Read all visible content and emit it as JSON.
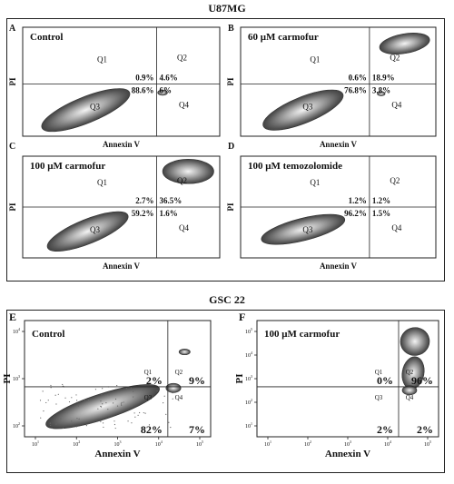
{
  "sections": [
    {
      "title": "U87MG"
    },
    {
      "title": "GSC 22"
    }
  ],
  "chart_data": [
    {
      "type": "scatter",
      "panel": "A",
      "title": "Control",
      "xlabel": "Annexin V",
      "ylabel": "PI",
      "size": "small",
      "quadrants": {
        "Q1": "0.9%",
        "Q2": "4.6%",
        "Q3": "88.6%",
        "Q4": "6%"
      },
      "populations": [
        {
          "quadrant": "Q3",
          "desc": "main"
        },
        {
          "quadrant": "Q4",
          "desc": "small-speck"
        }
      ]
    },
    {
      "type": "scatter",
      "panel": "B",
      "title": "60 μM carmofur",
      "xlabel": "Annexin V",
      "ylabel": "PI",
      "size": "small",
      "quadrants": {
        "Q1": "0.6%",
        "Q2": "18.9%",
        "Q3": "76.8%",
        "Q4": "3.8%"
      },
      "populations": [
        {
          "quadrant": "Q3",
          "desc": "main"
        },
        {
          "quadrant": "Q2",
          "desc": "upper-right"
        }
      ]
    },
    {
      "type": "scatter",
      "panel": "C",
      "title": "100 μM carmofur",
      "xlabel": "Annexin V",
      "ylabel": "PI",
      "size": "small",
      "quadrants": {
        "Q1": "2.7%",
        "Q2": "36.5%",
        "Q3": "59.2%",
        "Q4": "1.6%"
      },
      "populations": [
        {
          "quadrant": "Q3",
          "desc": "main"
        },
        {
          "quadrant": "Q2",
          "desc": "upper-right"
        }
      ]
    },
    {
      "type": "scatter",
      "panel": "D",
      "title": "100 μM temozolomide",
      "xlabel": "Annexin V",
      "ylabel": "PI",
      "size": "small",
      "quadrants": {
        "Q1": "1.2%",
        "Q2": "1.2%",
        "Q3": "96.2%",
        "Q4": "1.5%"
      },
      "populations": [
        {
          "quadrant": "Q3",
          "desc": "main"
        }
      ]
    },
    {
      "type": "scatter",
      "panel": "E",
      "title": "Control",
      "xlabel": "Annexin V",
      "ylabel": "PI",
      "size": "large",
      "quadrants": {
        "Q1": "2%",
        "Q2": "9%",
        "Q3": "82%",
        "Q4": "7%"
      },
      "x_ticks": [
        "10^1",
        "10^2",
        "10^3",
        "10^4",
        "10^5"
      ],
      "y_ticks": [
        "10^2",
        "10^3",
        "10^4"
      ],
      "populations": [
        {
          "quadrant": "Q3",
          "desc": "main"
        },
        {
          "quadrant": "Q2",
          "desc": "speck"
        }
      ]
    },
    {
      "type": "scatter",
      "panel": "F",
      "title": "100 μM carmofur",
      "xlabel": "Annexin V",
      "ylabel": "PI",
      "size": "large",
      "quadrants": {
        "Q1": "0%",
        "Q2": "96%",
        "Q3": "2%",
        "Q4": "2%"
      },
      "x_ticks": [
        "10^1",
        "10^2",
        "10^3",
        "10^4",
        "10^5"
      ],
      "y_ticks": [
        "10^1",
        "10^2",
        "10^3",
        "10^4",
        "10^5"
      ],
      "populations": [
        {
          "quadrant": "Q2",
          "desc": "vertical"
        }
      ]
    }
  ]
}
